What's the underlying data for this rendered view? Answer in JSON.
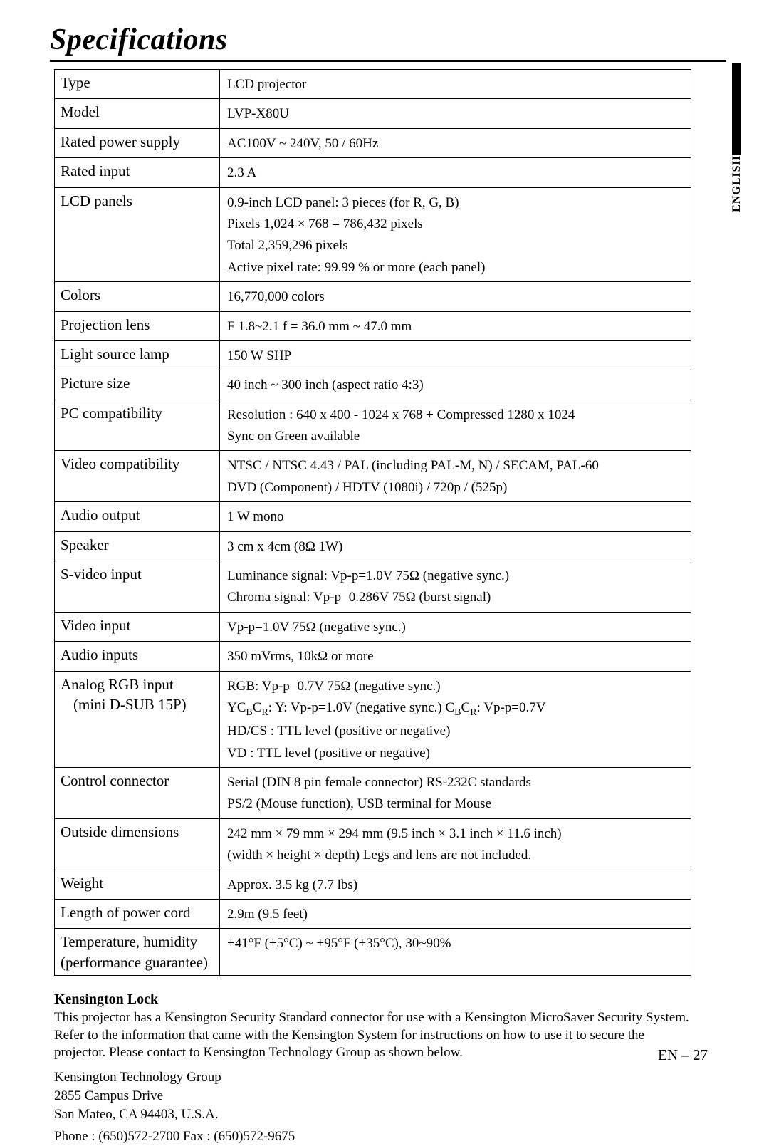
{
  "title": "Specifications",
  "language_tab": "ENGLISH",
  "page_number": "EN – 27",
  "table": [
    {
      "label": "Type",
      "lines": [
        "LCD projector"
      ]
    },
    {
      "label": "Model",
      "lines": [
        "LVP-X80U"
      ]
    },
    {
      "label": "Rated power supply",
      "lines": [
        "AC100V ~ 240V,  50 / 60Hz"
      ]
    },
    {
      "label": "Rated input",
      "lines": [
        "2.3 A"
      ]
    },
    {
      "label": "LCD panels",
      "lines": [
        "0.9-inch LCD panel: 3 pieces (for R, G, B)",
        "Pixels        1,024 ×   768 = 786,432 pixels",
        "Total          2,359,296 pixels",
        "Active pixel rate: 99.99 % or more (each panel)"
      ]
    },
    {
      "label": "Colors",
      "lines": [
        "16,770,000 colors"
      ]
    },
    {
      "label": "Projection lens",
      "lines": [
        "F 1.8~2.1  f = 36.0 mm ~ 47.0 mm"
      ]
    },
    {
      "label": "Light source lamp",
      "lines": [
        "150 W SHP"
      ]
    },
    {
      "label": "Picture size",
      "lines": [
        "40 inch ~ 300 inch (aspect ratio 4:3)"
      ]
    },
    {
      "label": "PC compatibility",
      "lines": [
        "Resolution : 640 x 400 - 1024 x 768 + Compressed 1280 x 1024",
        "Sync on Green available"
      ]
    },
    {
      "label": "Video compatibility",
      "lines": [
        "NTSC / NTSC 4.43 / PAL (including PAL-M, N) / SECAM, PAL-60",
        "DVD (Component) / HDTV (1080i)  / 720p / (525p)"
      ]
    },
    {
      "label": "Audio output",
      "lines": [
        "1 W  mono"
      ]
    },
    {
      "label": "Speaker",
      "lines": [
        "3 cm x 4cm  (8Ω 1W)"
      ]
    },
    {
      "label": "S-video input",
      "lines": [
        "Luminance signal: Vp-p=1.0V  75Ω    (negative sync.)",
        "Chroma signal: Vp-p=0.286V 75Ω  (burst signal)"
      ]
    },
    {
      "label": "Video input",
      "lines": [
        "Vp-p=1.0V  75Ω   (negative sync.)"
      ]
    },
    {
      "label": "Audio inputs",
      "lines": [
        "350 mVrms,  10kΩ or more"
      ]
    },
    {
      "label": "Analog RGB input",
      "sub": "(mini D-SUB 15P)",
      "lines": [
        "RGB: Vp-p=0.7V  75Ω (negative sync.)",
        "YC﻿BCR: Y: Vp-p=1.0V (negative sync.)        CBCR: Vp-p=0.7V",
        "HD/CS : TTL level (positive or negative)",
        "VD : TTL level (positive or negative)"
      ]
    },
    {
      "label": "Control connector",
      "lines": [
        "Serial (DIN 8 pin female connector) RS-232C standards",
        "PS/2 (Mouse function), USB terminal for Mouse"
      ]
    },
    {
      "label": "Outside dimensions",
      "lines": [
        "242 mm × 79 mm  × 294 mm (9.5 inch × 3.1 inch × 11.6 inch)",
        "(width × height × depth)                    Legs and lens are not included."
      ]
    },
    {
      "label": "Weight",
      "lines": [
        "Approx.  3.5 kg (7.7 lbs)"
      ]
    },
    {
      "label": "Length of power cord",
      "lines": [
        "2.9m (9.5 feet)"
      ]
    },
    {
      "label": "Temperature, humidity",
      "sub2": "(performance guarantee)",
      "lines": [
        "+41°F (+5°C) ~ +95°F (+35°C),  30~90%"
      ]
    }
  ],
  "footnote": {
    "heading": "Kensington Lock",
    "paragraph": "This projector has a Kensington Security Standard connector for use with a Kensington MicroSaver Security System. Refer to the information that came with the Kensington System for instructions on how to use it to secure the projector. Please contact to Kensington Technology Group as shown below.",
    "addr1": "Kensington Technology Group",
    "addr2": "2855 Campus Drive",
    "addr3": "San Mateo, CA 94403, U.S.A.",
    "phone": "Phone : (650)572-2700    Fax : (650)572-9675"
  }
}
